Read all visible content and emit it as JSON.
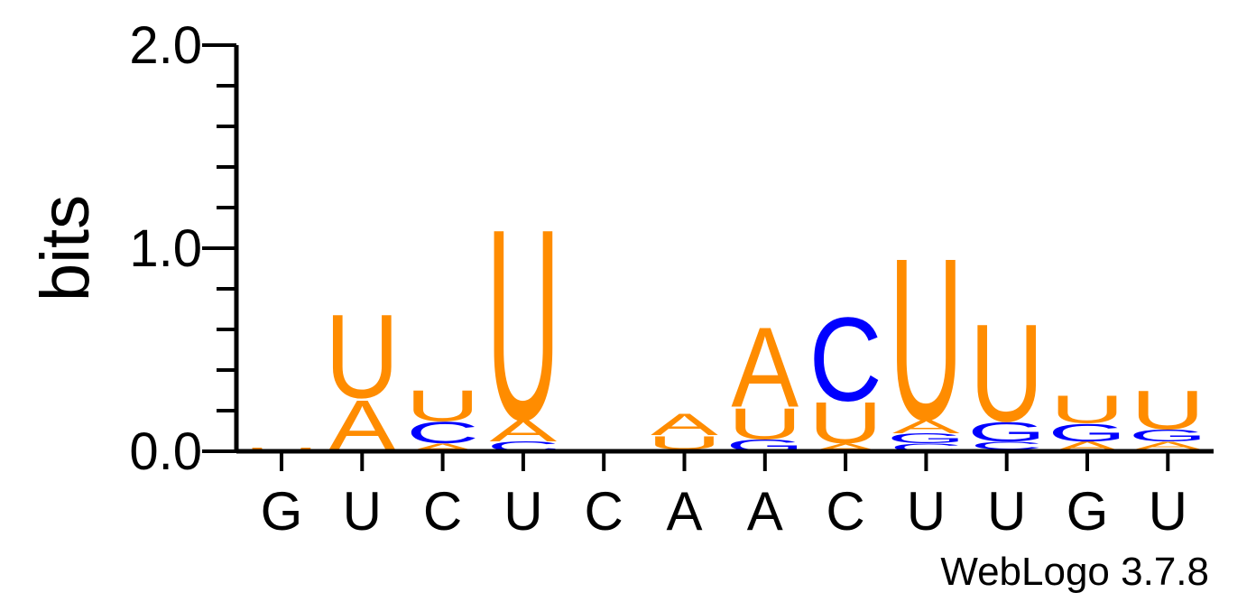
{
  "chart_data": {
    "type": "sequence-logo",
    "ylabel": "bits",
    "ylim": [
      0,
      2.0
    ],
    "yticks": [
      {
        "value": 0.0,
        "label": "0.0"
      },
      {
        "value": 1.0,
        "label": "1.0"
      },
      {
        "value": 2.0,
        "label": "2.0"
      }
    ],
    "minor_tick_step": 0.2,
    "colors": {
      "A": "#ff8c00",
      "U": "#ff8c00",
      "C": "#0000ff",
      "G": "#0000ff"
    },
    "positions": [
      {
        "label": "G",
        "stack": [
          {
            "letter": "A",
            "height": 0.01
          },
          {
            "letter": "U",
            "height": 0.01
          }
        ]
      },
      {
        "label": "U",
        "stack": [
          {
            "letter": "C",
            "height": 0.005
          },
          {
            "letter": "A",
            "height": 0.26
          },
          {
            "letter": "U",
            "height": 0.43
          }
        ]
      },
      {
        "label": "C",
        "stack": [
          {
            "letter": "A",
            "height": 0.04
          },
          {
            "letter": "C",
            "height": 0.11
          },
          {
            "letter": "U",
            "height": 0.16
          }
        ]
      },
      {
        "label": "U",
        "stack": [
          {
            "letter": "C",
            "height": 0.05
          },
          {
            "letter": "A",
            "height": 0.11
          },
          {
            "letter": "U",
            "height": 0.98
          }
        ]
      },
      {
        "label": "C",
        "stack": []
      },
      {
        "label": "A",
        "stack": [
          {
            "letter": "C",
            "height": 0.01
          },
          {
            "letter": "U",
            "height": 0.07
          },
          {
            "letter": "A",
            "height": 0.11
          }
        ]
      },
      {
        "label": "A",
        "stack": [
          {
            "letter": "G",
            "height": 0.06
          },
          {
            "letter": "U",
            "height": 0.16
          },
          {
            "letter": "A",
            "height": 0.41
          }
        ]
      },
      {
        "label": "C",
        "stack": [
          {
            "letter": "A",
            "height": 0.04
          },
          {
            "letter": "U",
            "height": 0.21
          },
          {
            "letter": "C",
            "height": 0.43
          }
        ]
      },
      {
        "label": "U",
        "stack": [
          {
            "letter": "C",
            "height": 0.04
          },
          {
            "letter": "G",
            "height": 0.05
          },
          {
            "letter": "A",
            "height": 0.07
          },
          {
            "letter": "U",
            "height": 0.83
          }
        ]
      },
      {
        "label": "U",
        "stack": [
          {
            "letter": "A",
            "height": 0.01
          },
          {
            "letter": "C",
            "height": 0.04
          },
          {
            "letter": "G",
            "height": 0.1
          },
          {
            "letter": "U",
            "height": 0.5
          }
        ]
      },
      {
        "label": "G",
        "stack": [
          {
            "letter": "A",
            "height": 0.05
          },
          {
            "letter": "G",
            "height": 0.09
          },
          {
            "letter": "U",
            "height": 0.14
          }
        ]
      },
      {
        "label": "U",
        "stack": [
          {
            "letter": "C",
            "height": 0.01
          },
          {
            "letter": "A",
            "height": 0.04
          },
          {
            "letter": "G",
            "height": 0.06
          },
          {
            "letter": "U",
            "height": 0.2
          }
        ]
      }
    ],
    "footer": "WebLogo 3.7.8"
  }
}
